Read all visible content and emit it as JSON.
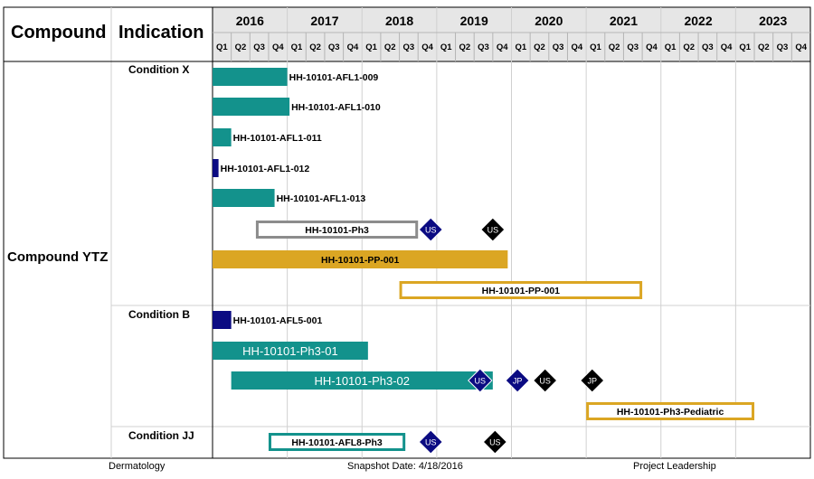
{
  "header": {
    "compound_title": "Compound",
    "indication_title": "Indication"
  },
  "compound": "Compound YTZ",
  "indications": [
    "Condition X",
    "Condition B",
    "Condition JJ"
  ],
  "footer": {
    "left": "Dermatology",
    "center": "Snapshot Date: 4/18/2016",
    "right": "Project Leadership"
  },
  "colors": {
    "teal": "#13928c",
    "navy": "#0b0b82",
    "gold": "#dba623",
    "gray": "#8c8c8c",
    "black": "#000000",
    "header_bg": "#e6e6e6",
    "grid": "#d0d0d0"
  },
  "chart_data": {
    "type": "gantt",
    "years": [
      "2016",
      "2017",
      "2018",
      "2019",
      "2020",
      "2021",
      "2022",
      "2023"
    ],
    "quarters": [
      "Q1",
      "Q2",
      "Q3",
      "Q4"
    ],
    "x_start": 2016.0,
    "x_end": 2024.0,
    "tasks": [
      {
        "label": "HH-10101-AFL1-009",
        "indication": "Condition X",
        "start": 2016.0,
        "end": 2017.0,
        "style": "fill",
        "color": "teal",
        "label_pos": "right"
      },
      {
        "label": "HH-10101-AFL1-010",
        "indication": "Condition X",
        "start": 2016.0,
        "end": 2017.03,
        "style": "fill",
        "color": "teal",
        "label_pos": "right"
      },
      {
        "label": "HH-10101-AFL1-011",
        "indication": "Condition X",
        "start": 2016.0,
        "end": 2016.25,
        "style": "fill",
        "color": "teal",
        "label_pos": "right"
      },
      {
        "label": "HH-10101-AFL1-012",
        "indication": "Condition X",
        "start": 2016.0,
        "end": 2016.08,
        "style": "fill",
        "color": "navy",
        "label_pos": "right"
      },
      {
        "label": "HH-10101-AFL1-013",
        "indication": "Condition X",
        "start": 2016.0,
        "end": 2016.83,
        "style": "fill",
        "color": "teal",
        "label_pos": "right"
      },
      {
        "label": "HH-10101-Ph3",
        "indication": "Condition X",
        "start": 2016.58,
        "end": 2018.75,
        "style": "outline",
        "color": "gray",
        "label_pos": "inside",
        "milestones": [
          {
            "label": "US",
            "date": 2018.92,
            "color": "navy"
          },
          {
            "label": "US",
            "date": 2019.75,
            "color": "black"
          }
        ]
      },
      {
        "label": "HH-10101-PP-001",
        "indication": "Condition X",
        "start": 2016.0,
        "end": 2019.95,
        "style": "fill",
        "color": "gold",
        "label_pos": "inside"
      },
      {
        "label": "HH-10101-PP-001",
        "indication": "Condition X",
        "start": 2018.5,
        "end": 2021.75,
        "style": "outline",
        "color": "gold",
        "label_pos": "inside"
      },
      {
        "label": "HH-10101-AFL5-001",
        "indication": "Condition B",
        "start": 2016.0,
        "end": 2016.25,
        "style": "fill",
        "color": "navy",
        "label_pos": "right"
      },
      {
        "label": "HH-10101-Ph3-01",
        "indication": "Condition B",
        "start": 2016.0,
        "end": 2018.08,
        "style": "fill",
        "color": "teal",
        "label_pos": "inside-white"
      },
      {
        "label": "HH-10101-Ph3-02",
        "indication": "Condition B",
        "start": 2016.25,
        "end": 2019.75,
        "style": "fill",
        "color": "teal",
        "label_pos": "inside-white",
        "milestones": [
          {
            "label": "US",
            "date": 2019.58,
            "color": "navy"
          },
          {
            "label": "JP",
            "date": 2020.08,
            "color": "navy"
          },
          {
            "label": "US",
            "date": 2020.45,
            "color": "black"
          },
          {
            "label": "JP",
            "date": 2021.08,
            "color": "black"
          }
        ]
      },
      {
        "label": "HH-10101-Ph3-Pediatric",
        "indication": "Condition B",
        "start": 2021.0,
        "end": 2023.25,
        "style": "outline",
        "color": "gold",
        "label_pos": "inside"
      },
      {
        "label": "HH-10101-AFL8-Ph3",
        "indication": "Condition JJ",
        "start": 2016.75,
        "end": 2018.58,
        "style": "outline",
        "color": "teal",
        "label_pos": "inside",
        "milestones": [
          {
            "label": "US",
            "date": 2018.92,
            "color": "navy"
          },
          {
            "label": "US",
            "date": 2019.78,
            "color": "black"
          }
        ]
      }
    ]
  }
}
